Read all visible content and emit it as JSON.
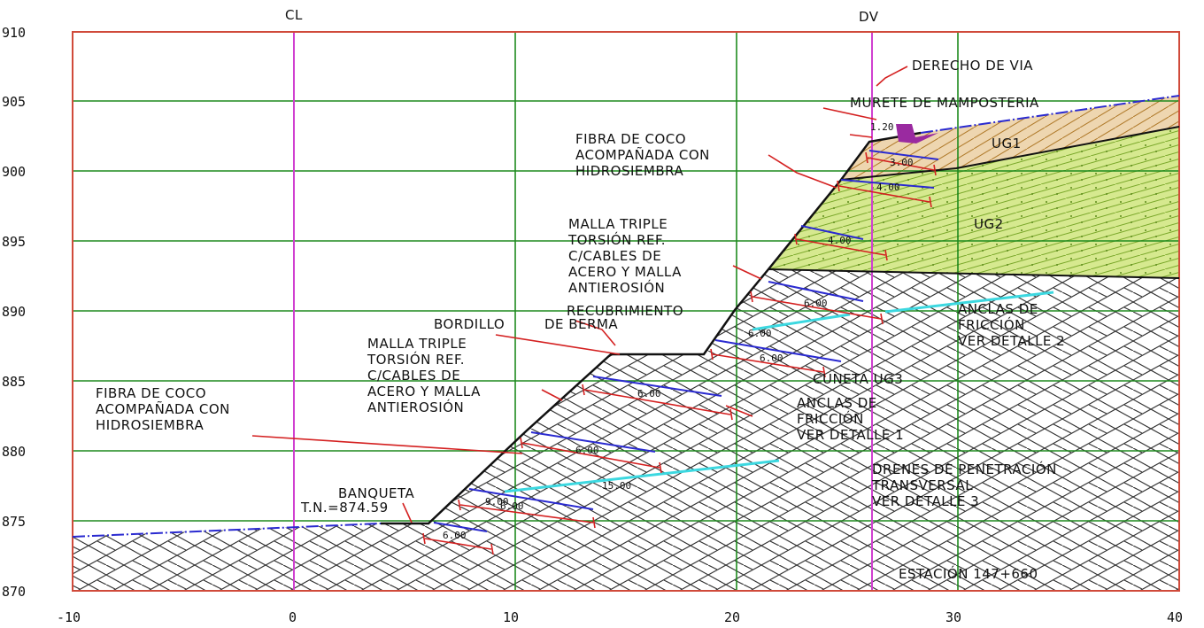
{
  "axes": {
    "y_ticks": [
      "910",
      "905",
      "900",
      "895",
      "890",
      "885",
      "880",
      "875",
      "870"
    ],
    "x_ticks": [
      "-10",
      "0",
      "10",
      "20",
      "30",
      "40"
    ],
    "centerline": "CL",
    "right_of_way": "DV"
  },
  "colors": {
    "frame": "#d04a3a",
    "grid": "#1e8a1e",
    "marker_line": "#d040d0",
    "terrain": "#2a2ad0",
    "dims": "#d42020",
    "drains": "#3cd8e0",
    "ug1_fill": "#e8c89a",
    "ug2_fill": "#c8e07a"
  },
  "labels": {
    "derecho_de_via": "DERECHO DE VIA",
    "murete": "MURETE DE MAMPOSTERIA",
    "murete_dim": "1.20",
    "ug1": "UG1",
    "ug2": "UG2",
    "ug3": "CUNETA UG3",
    "fibra_top": [
      "FIBRA DE COCO",
      "ACOMPAÑADA CON",
      "HIDROSIEMBRA"
    ],
    "malla_top": [
      "MALLA TRIPLE",
      "TORSIÓN REF.",
      "C/CABLES DE",
      "ACERO Y MALLA",
      "ANTIEROSIÓN"
    ],
    "recubrimiento": "RECUBRIMIENTO",
    "bordillo": [
      "BORDILLO",
      "DE BERMA"
    ],
    "malla_bottom": [
      "MALLA TRIPLE",
      "TORSIÓN REF.",
      "C/CABLES DE",
      "ACERO Y MALLA",
      "ANTIEROSIÓN"
    ],
    "fibra_bottom": [
      "FIBRA DE COCO",
      "ACOMPAÑADA CON",
      "HIDROSIEMBRA"
    ],
    "banqueta": "BANQUETA",
    "tn": "T.N.=874.59",
    "anclas_top": [
      "ANCLAS DE",
      "FRICCIÓN",
      "VER DETALLE 2"
    ],
    "anclas_mid": [
      "ANCLAS DE",
      "FRICCIÓN",
      "VER DETALLE 1"
    ],
    "drenes": [
      "DRENES DE PENETRACIÓN",
      "TRANSVERSAL",
      "VER DETALLE 3"
    ],
    "estacion": "ESTACIÓN 147+660",
    "anchor_dims": [
      "3.00",
      "4.00",
      "4.00",
      "6.00",
      "6.00",
      "6.00",
      "6.00",
      "6.00",
      "6.00",
      "9.00",
      "15.00",
      "6.00"
    ]
  }
}
